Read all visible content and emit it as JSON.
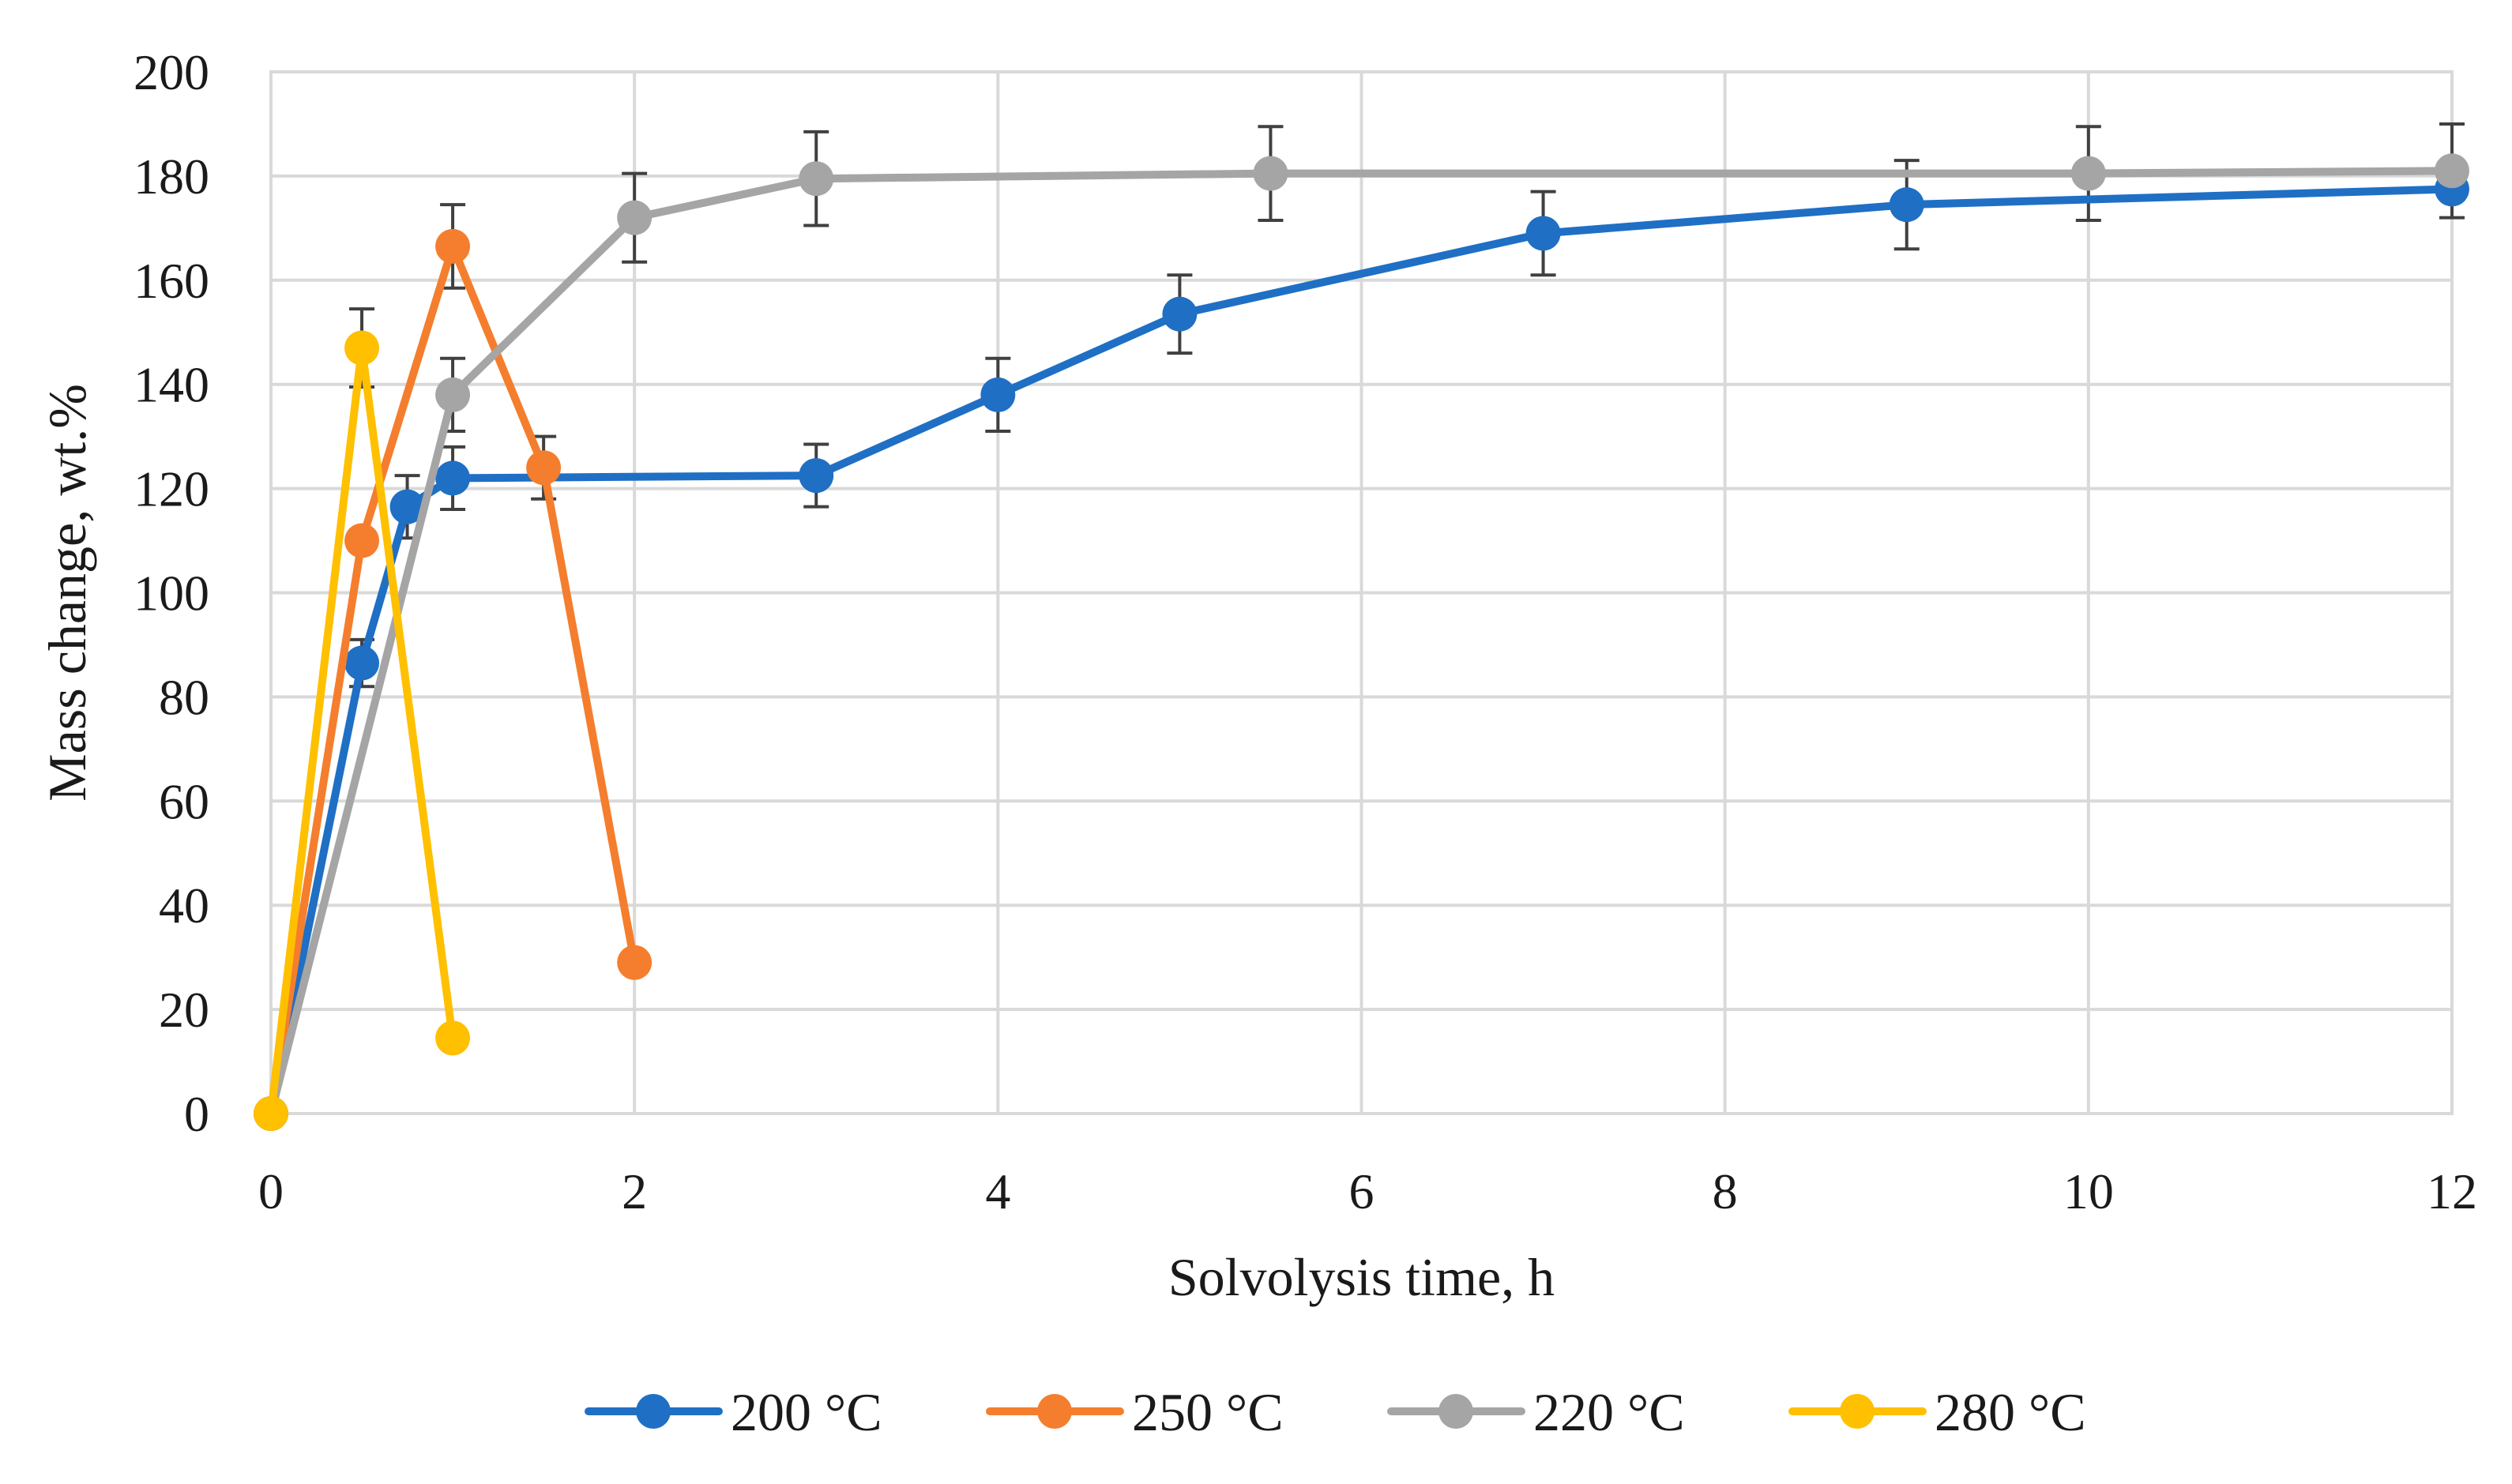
{
  "chart_data": {
    "type": "line",
    "title": "",
    "xlabel": "Solvolysis time, h",
    "ylabel": "Mass change, wt.%",
    "xlim": [
      0,
      12
    ],
    "ylim": [
      0,
      200
    ],
    "xticks": [
      0,
      2,
      4,
      6,
      8,
      10,
      12
    ],
    "yticks": [
      0,
      20,
      40,
      60,
      80,
      100,
      120,
      140,
      160,
      180,
      200
    ],
    "xtick_labels": [
      "0",
      "2",
      "4",
      "6",
      "8",
      "10",
      "12"
    ],
    "ytick_labels": [
      "0",
      "20",
      "40",
      "60",
      "80",
      "100",
      "120",
      "140",
      "160",
      "180",
      "200"
    ],
    "grid": true,
    "legend_position": "bottom",
    "series": [
      {
        "name": "200 °C",
        "color": "#1f6fc5",
        "x": [
          0,
          0.5,
          0.75,
          1,
          3,
          4,
          5,
          7,
          9,
          12
        ],
        "y": [
          0,
          86.5,
          116.5,
          122,
          122.5,
          138,
          153.5,
          169,
          174.5,
          177.5
        ],
        "err": [
          0,
          4.5,
          6,
          6,
          6,
          7,
          7.5,
          8,
          8.5,
          0
        ]
      },
      {
        "name": "250 °C",
        "color": "#f47e2d",
        "x": [
          0,
          0.5,
          1,
          1.5,
          2
        ],
        "y": [
          0,
          110,
          166.5,
          124,
          29
        ],
        "err": [
          0,
          0,
          8,
          6,
          0
        ]
      },
      {
        "name": "220 °C",
        "color": "#a5a5a5",
        "x": [
          0,
          1,
          2,
          3,
          5.5,
          10,
          12
        ],
        "y": [
          0,
          138,
          172,
          179.5,
          180.5,
          180.5,
          181
        ],
        "err": [
          0,
          7,
          8.5,
          9,
          9,
          9,
          9
        ]
      },
      {
        "name": "280 °C",
        "color": "#ffc000",
        "x": [
          0,
          0.5,
          1
        ],
        "y": [
          0,
          147,
          14.5
        ],
        "err": [
          0,
          7.5,
          0
        ]
      }
    ]
  }
}
